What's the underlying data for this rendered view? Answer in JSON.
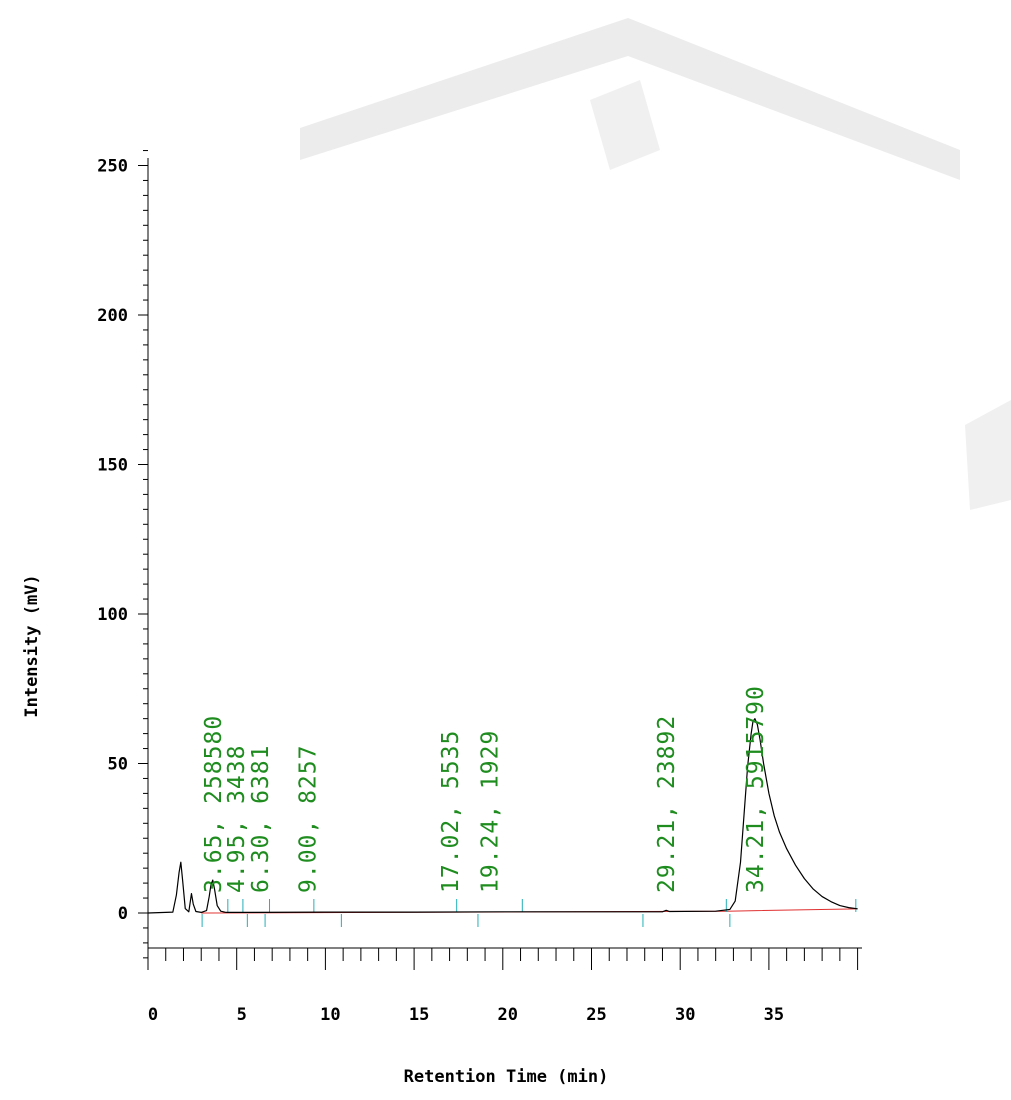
{
  "chart_data": {
    "type": "line",
    "xlabel": "Retention Time (min)",
    "ylabel": "Intensity (mV)",
    "xlim": [
      0,
      40
    ],
    "ylim": [
      -17,
      257
    ],
    "x_ticks": [
      0,
      5,
      10,
      15,
      20,
      25,
      30,
      35
    ],
    "x_tick_labels": [
      "0",
      "5",
      "10",
      "15",
      "20",
      "25",
      "30",
      "35"
    ],
    "y_ticks": [
      0,
      50,
      100,
      150,
      200,
      250
    ],
    "y_tick_labels": [
      "0",
      "50",
      "100",
      "150",
      "200",
      "250"
    ],
    "grid": false,
    "colors": {
      "trace": "#000000",
      "baseline": "#e03030",
      "annotation": "#1e8c1e",
      "marker": "#22b0b8",
      "watermark": "#ebebeb"
    },
    "series": [
      {
        "x": [
          0,
          1.4,
          1.6,
          1.75,
          1.85,
          1.95,
          2.1,
          2.3,
          2.45,
          2.55,
          2.7,
          3.0,
          3.3,
          3.45,
          3.55,
          3.65,
          3.75,
          3.9,
          4.1,
          4.4,
          5,
          10,
          15,
          20,
          25,
          29.0,
          29.21,
          29.4,
          32.0,
          32.8,
          33.1,
          33.4,
          33.6,
          33.8,
          34.0,
          34.1,
          34.21,
          34.35,
          34.5,
          34.7,
          35.0,
          35.3,
          35.6,
          36.0,
          36.5,
          37.0,
          37.5,
          38.0,
          38.5,
          39.0,
          39.5,
          40.0
        ],
        "y": [
          0,
          0.3,
          6.0,
          13.5,
          17.0,
          11.0,
          1.5,
          0.4,
          6.5,
          3.0,
          0.5,
          0.2,
          0.8,
          5.5,
          9.5,
          11.0,
          8.0,
          2.5,
          0.6,
          0.2,
          0.2,
          0.3,
          0.3,
          0.4,
          0.4,
          0.4,
          0.9,
          0.5,
          0.6,
          1.2,
          4.0,
          17.0,
          33.0,
          49.0,
          60.0,
          64.0,
          65.0,
          63.0,
          58.0,
          50.0,
          40.0,
          32.5,
          27.0,
          21.5,
          16.0,
          11.5,
          8.0,
          5.5,
          3.8,
          2.5,
          1.8,
          1.4
        ]
      }
    ],
    "baseline": {
      "x": [
        3.0,
        32.6,
        40.0
      ],
      "y": [
        0,
        0.6,
        1.4
      ]
    },
    "integration_marks": {
      "start": [
        3.05,
        5.6,
        6.6,
        10.9,
        18.6,
        27.9,
        32.8
      ],
      "end": [
        4.5,
        5.35,
        6.85,
        9.35,
        17.4,
        21.1,
        32.6,
        39.9
      ]
    },
    "peaks": [
      {
        "rt": 3.65,
        "area": 258580,
        "label": "3.65, 258580"
      },
      {
        "rt": 4.95,
        "area": 3438,
        "label": "4.95, 3438"
      },
      {
        "rt": 6.3,
        "area": 6381,
        "label": "6.30, 6381"
      },
      {
        "rt": 9.0,
        "area": 8257,
        "label": "9.00, 8257"
      },
      {
        "rt": 17.02,
        "area": 5535,
        "label": "17.02, 5535"
      },
      {
        "rt": 19.24,
        "area": 1929,
        "label": "19.24, 1929"
      },
      {
        "rt": 29.21,
        "area": 23892,
        "label": "29.21, 23892"
      },
      {
        "rt": 34.21,
        "area": 5915790,
        "label": "34.21, 5915790"
      }
    ]
  }
}
